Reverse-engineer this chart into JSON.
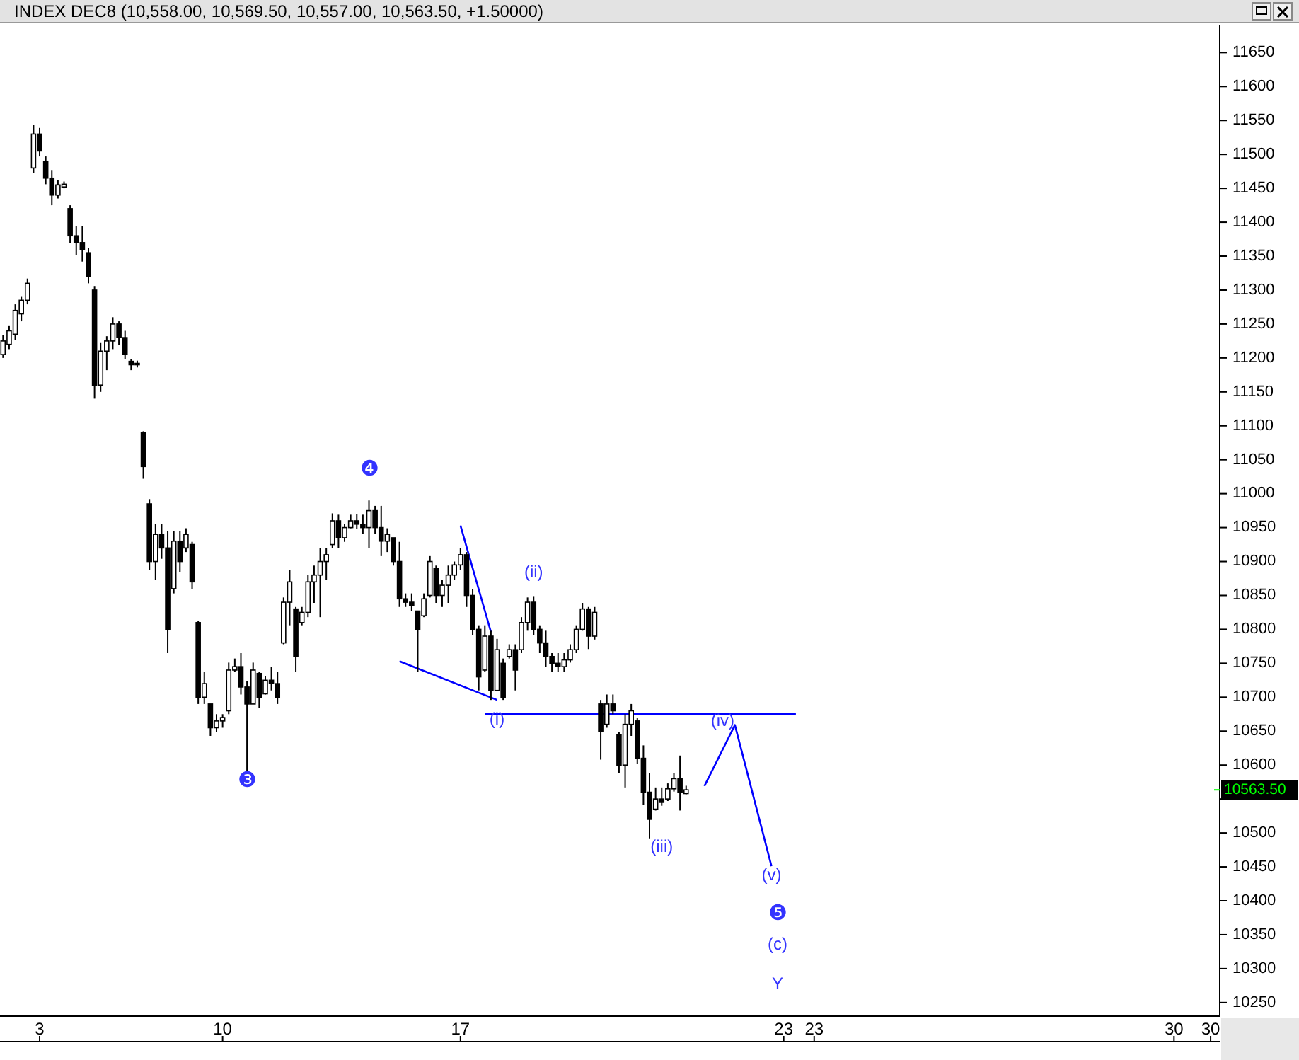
{
  "chart_data": {
    "type": "candlestick",
    "title": "INDEX DEC8 (10,558.00, 10,569.50, 10,557.00, 10,563.50, +1.50000)",
    "categories": [
      null,
      null,
      null,
      null,
      null,
      null,
      "3",
      null,
      null,
      null,
      null,
      null,
      null,
      null,
      null,
      null,
      null,
      null,
      null,
      null,
      null,
      null,
      null,
      null,
      null,
      null,
      null,
      null,
      null,
      null,
      null,
      null,
      null,
      null,
      null,
      null,
      "10",
      null,
      null,
      null,
      null,
      null,
      null,
      null,
      null,
      null,
      null,
      null,
      null,
      null,
      null,
      null,
      null,
      null,
      null,
      null,
      null,
      null,
      null,
      null,
      null,
      null,
      null,
      null,
      null,
      null,
      null,
      null,
      null,
      null,
      null,
      null,
      null,
      null,
      null,
      "17",
      null,
      null,
      null,
      null,
      null,
      null,
      null,
      null,
      null,
      null,
      null,
      null,
      null,
      null,
      null,
      null,
      null,
      null,
      null,
      null,
      null,
      null,
      null,
      null,
      null,
      null,
      null,
      null,
      null,
      null,
      null,
      null,
      null,
      null,
      null,
      null,
      null,
      null,
      null,
      null,
      null,
      null,
      null,
      null,
      null,
      null,
      null,
      null,
      null,
      null,
      null,
      null,
      "23",
      null,
      null,
      null,
      null,
      "23",
      null,
      null,
      null,
      null,
      null,
      null,
      null,
      null,
      null,
      null,
      null,
      null,
      null,
      null,
      null,
      null,
      null,
      null,
      null,
      null,
      null,
      null,
      null,
      null,
      null,
      null,
      null,
      null,
      null,
      null,
      null,
      null,
      null,
      null,
      null,
      null,
      null,
      null,
      null,
      null,
      null,
      null,
      null,
      null,
      null,
      null,
      null,
      null,
      null,
      null,
      null,
      null,
      null,
      null,
      null,
      null,
      null,
      null,
      "30",
      null,
      null,
      null,
      null,
      null,
      "30",
      null
    ],
    "ohlc": [
      [
        11205,
        11234,
        11200,
        11225
      ],
      [
        11220,
        11248,
        11213,
        11240
      ],
      [
        11235,
        11279,
        11227,
        11270
      ],
      [
        11265,
        11290,
        11254,
        11285
      ],
      [
        11285,
        11317,
        11279,
        11310
      ],
      [
        11480,
        11543,
        11473,
        11530
      ],
      [
        11530,
        11539,
        11497,
        11505
      ],
      [
        11490,
        11497,
        11456,
        11465
      ],
      [
        11465,
        11477,
        11425,
        11440
      ],
      [
        11440,
        11462,
        11435,
        11455
      ],
      [
        11452,
        11460,
        11450,
        11456
      ],
      [
        11420,
        11425,
        11369,
        11380
      ],
      [
        11380,
        11394,
        11352,
        11370
      ],
      [
        11370,
        11394,
        11342,
        11360
      ],
      [
        11355,
        11362,
        11310,
        11320
      ],
      [
        11300,
        11306,
        11140,
        11160
      ],
      [
        11160,
        11222,
        11150,
        11210
      ],
      [
        11210,
        11232,
        11182,
        11225
      ],
      [
        11225,
        11260,
        11213,
        11250
      ],
      [
        11250,
        11254,
        11219,
        11230
      ],
      [
        11230,
        11240,
        11198,
        11205
      ],
      [
        11195,
        11198,
        11182,
        11190
      ],
      [
        11190,
        11196,
        11186,
        11192
      ],
      [
        11090,
        11092,
        11022,
        11040
      ],
      [
        10985,
        10992,
        10888,
        10900
      ],
      [
        10900,
        10955,
        10873,
        10940
      ],
      [
        10940,
        10955,
        10904,
        10920
      ],
      [
        10920,
        10945,
        10765,
        10800
      ],
      [
        10860,
        10945,
        10853,
        10930
      ],
      [
        10930,
        10945,
        10884,
        10900
      ],
      [
        10920,
        10949,
        10914,
        10940
      ],
      [
        10925,
        10929,
        10859,
        10870
      ],
      [
        10810,
        10812,
        10690,
        10700
      ],
      [
        10700,
        10737,
        10690,
        10720
      ],
      [
        10690,
        10690,
        10643,
        10655
      ],
      [
        10655,
        10675,
        10649,
        10665
      ],
      [
        10665,
        10675,
        10655,
        10670
      ],
      [
        10680,
        10751,
        10675,
        10740
      ],
      [
        10740,
        10757,
        10737,
        10745
      ],
      [
        10745,
        10765,
        10704,
        10715
      ],
      [
        10715,
        10724,
        10588,
        10690
      ],
      [
        10690,
        10751,
        10690,
        10740
      ],
      [
        10735,
        10737,
        10684,
        10700
      ],
      [
        10705,
        10731,
        10704,
        10725
      ],
      [
        10725,
        10745,
        10710,
        10720
      ],
      [
        10720,
        10737,
        10690,
        10700
      ],
      [
        10780,
        10847,
        10778,
        10840
      ],
      [
        10840,
        10888,
        10806,
        10870
      ],
      [
        10830,
        10833,
        10737,
        10760
      ],
      [
        10810,
        10833,
        10806,
        10825
      ],
      [
        10825,
        10880,
        10818,
        10870
      ],
      [
        10870,
        10894,
        10839,
        10880
      ],
      [
        10880,
        10920,
        10818,
        10900
      ],
      [
        10900,
        10920,
        10873,
        10910
      ],
      [
        10925,
        10971,
        10920,
        10960
      ],
      [
        10960,
        10969,
        10920,
        10935
      ],
      [
        10935,
        10955,
        10929,
        10950
      ],
      [
        10950,
        10969,
        10949,
        10960
      ],
      [
        10960,
        10970,
        10948,
        10955
      ],
      [
        10955,
        10969,
        10941,
        10950
      ],
      [
        10950,
        10990,
        10920,
        10975
      ],
      [
        10975,
        10982,
        10941,
        10950
      ],
      [
        10950,
        10982,
        10908,
        10930
      ],
      [
        10930,
        10949,
        10914,
        10940
      ],
      [
        10935,
        10935,
        10894,
        10900
      ],
      [
        10900,
        10929,
        10833,
        10845
      ],
      [
        10845,
        10853,
        10833,
        10840
      ],
      [
        10840,
        10853,
        10827,
        10835
      ],
      [
        10827,
        10827,
        10737,
        10800
      ],
      [
        10820,
        10853,
        10818,
        10845
      ],
      [
        10850,
        10908,
        10847,
        10900
      ],
      [
        10890,
        10894,
        10839,
        10850
      ],
      [
        10850,
        10873,
        10833,
        10865
      ],
      [
        10865,
        10894,
        10839,
        10880
      ],
      [
        10880,
        10900,
        10873,
        10895
      ],
      [
        10895,
        10920,
        10888,
        10910
      ],
      [
        10910,
        10914,
        10833,
        10850
      ],
      [
        10850,
        10859,
        10792,
        10800
      ],
      [
        10800,
        10806,
        10710,
        10730
      ],
      [
        10740,
        10806,
        10737,
        10790
      ],
      [
        10790,
        10798,
        10696,
        10710
      ],
      [
        10710,
        10786,
        10710,
        10770
      ],
      [
        10750,
        10757,
        10696,
        10700
      ],
      [
        10760,
        10778,
        10757,
        10770
      ],
      [
        10770,
        10778,
        10710,
        10740
      ],
      [
        10770,
        10818,
        10765,
        10810
      ],
      [
        10810,
        10847,
        10798,
        10840
      ],
      [
        10840,
        10849,
        10792,
        10800
      ],
      [
        10800,
        10806,
        10765,
        10780
      ],
      [
        10780,
        10798,
        10745,
        10760
      ],
      [
        10760,
        10765,
        10737,
        10750
      ],
      [
        10750,
        10765,
        10737,
        10745
      ],
      [
        10745,
        10765,
        10737,
        10755
      ],
      [
        10755,
        10778,
        10751,
        10770
      ],
      [
        10770,
        10806,
        10765,
        10800
      ],
      [
        10800,
        10839,
        10798,
        10830
      ],
      [
        10830,
        10833,
        10771,
        10790
      ],
      [
        10790,
        10833,
        10785,
        10825
      ],
      [
        10690,
        10696,
        10608,
        10650
      ],
      [
        10660,
        10704,
        10655,
        10690
      ],
      [
        10690,
        10704,
        10675,
        10680
      ],
      [
        10645,
        10649,
        10588,
        10600
      ],
      [
        10600,
        10675,
        10567,
        10660
      ],
      [
        10660,
        10690,
        10643,
        10680
      ],
      [
        10665,
        10669,
        10602,
        10610
      ],
      [
        10610,
        10629,
        10541,
        10560
      ],
      [
        10560,
        10588,
        10492,
        10520
      ],
      [
        10535,
        10567,
        10533,
        10550
      ],
      [
        10550,
        10567,
        10540,
        10545
      ],
      [
        10550,
        10573,
        10547,
        10565
      ],
      [
        10565,
        10588,
        10561,
        10580
      ],
      [
        10580,
        10614,
        10533,
        10560
      ],
      [
        10558,
        10569.5,
        10557,
        10563.5
      ],
      null,
      null,
      null,
      null,
      null,
      null,
      null,
      null,
      null,
      null,
      null,
      null,
      null,
      null,
      null,
      null,
      null,
      null,
      null,
      null,
      null,
      null,
      null,
      null,
      null,
      null,
      null,
      null,
      null,
      null,
      null,
      null,
      null,
      null,
      null,
      null,
      null,
      null,
      null,
      null,
      null,
      null,
      null,
      null,
      null,
      null,
      null,
      null,
      null,
      null,
      null,
      null,
      null,
      null,
      null,
      null,
      null,
      null,
      null,
      null,
      null,
      null,
      null,
      null,
      null,
      null,
      null,
      null,
      null,
      null,
      null,
      null,
      null,
      null,
      null,
      null,
      null,
      null,
      null,
      null,
      null,
      null,
      null,
      null,
      null,
      null,
      null
    ],
    "color": "#000000",
    "series": [
      {
        "type": "line",
        "color": "#0000ff",
        "values": [
          null,
          null,
          null,
          null,
          null,
          null,
          null,
          null,
          null,
          null,
          null,
          null,
          null,
          null,
          null,
          null,
          null,
          null,
          null,
          null,
          null,
          null,
          null,
          null,
          null,
          null,
          null,
          null,
          null,
          null,
          null,
          null,
          null,
          null,
          null,
          null,
          null,
          null,
          null,
          null,
          null,
          null,
          null,
          null,
          null,
          null,
          null,
          null,
          null,
          null,
          null,
          null,
          null,
          null,
          null,
          null,
          null,
          null,
          null,
          null,
          null,
          null,
          null,
          null,
          null,
          10753,
          null,
          null,
          null,
          null,
          null,
          null,
          null,
          null,
          null,
          null,
          null,
          null,
          null,
          null,
          null,
          10696,
          null,
          null,
          null,
          null,
          null,
          null,
          null,
          null,
          null,
          null,
          null,
          null,
          null,
          null,
          null,
          null,
          null,
          null,
          null,
          null,
          null,
          null,
          null,
          null,
          null,
          null,
          null,
          null,
          null,
          null,
          null,
          null,
          null,
          null,
          null,
          null,
          null,
          null,
          null,
          null,
          null,
          null,
          null,
          null,
          null,
          null,
          null,
          null,
          null,
          null,
          null,
          null,
          null,
          null,
          null,
          null,
          null,
          null,
          null,
          null,
          null,
          null,
          null,
          null,
          null,
          null,
          null,
          null,
          null,
          null,
          null,
          null,
          null,
          null,
          null,
          null,
          null,
          null,
          null,
          null,
          null,
          null,
          null,
          null,
          null,
          null,
          null,
          null,
          null,
          null,
          null,
          null,
          null,
          null,
          null,
          null,
          null,
          null,
          null,
          null,
          null,
          null,
          null,
          null,
          null,
          null,
          null,
          null,
          null,
          null,
          null,
          null,
          null,
          null,
          null,
          null,
          null,
          null
        ]
      },
      {
        "type": "line",
        "color": "#0000ff",
        "values": [
          null,
          null,
          null,
          null,
          null,
          null,
          null,
          null,
          null,
          null,
          null,
          null,
          null,
          null,
          null,
          null,
          null,
          null,
          null,
          null,
          null,
          null,
          null,
          null,
          null,
          null,
          null,
          null,
          null,
          null,
          null,
          null,
          null,
          null,
          null,
          null,
          null,
          null,
          null,
          null,
          null,
          null,
          null,
          null,
          null,
          null,
          null,
          null,
          null,
          null,
          null,
          null,
          null,
          null,
          null,
          null,
          null,
          null,
          null,
          null,
          null,
          null,
          null,
          null,
          null,
          null,
          null,
          null,
          null,
          null,
          null,
          null,
          null,
          null,
          null,
          10953,
          null,
          null,
          null,
          null,
          10796,
          null,
          null,
          null,
          null,
          null,
          null,
          null,
          null,
          null,
          null,
          null,
          null,
          null,
          null,
          null,
          null,
          null,
          null,
          null,
          null,
          null,
          null,
          null,
          null,
          null,
          null,
          null,
          null,
          null,
          null,
          null,
          null,
          null,
          null,
          null,
          null,
          null,
          null,
          null,
          null,
          null,
          null,
          null,
          null,
          null,
          null,
          null,
          null,
          null,
          null,
          null,
          null,
          null,
          null,
          null,
          null,
          null,
          null,
          null,
          null,
          null,
          null,
          null,
          null,
          null,
          null,
          null,
          null,
          null,
          null,
          null,
          null,
          null,
          null,
          null,
          null,
          null,
          null,
          null,
          null,
          null,
          null,
          null,
          null,
          null,
          null,
          null,
          null,
          null,
          null,
          null,
          null,
          null,
          null,
          null,
          null,
          null,
          null,
          null,
          null,
          null,
          null,
          null,
          null,
          null,
          null,
          null,
          null,
          null,
          null,
          null,
          null,
          null,
          null,
          null,
          null,
          null,
          null,
          null
        ]
      },
      {
        "type": "line",
        "color": "#0000ff",
        "values": [
          null,
          null,
          null,
          null,
          null,
          null,
          null,
          null,
          null,
          null,
          null,
          null,
          null,
          null,
          null,
          null,
          null,
          null,
          null,
          null,
          null,
          null,
          null,
          null,
          null,
          null,
          null,
          null,
          null,
          null,
          null,
          null,
          null,
          null,
          null,
          null,
          null,
          null,
          null,
          null,
          null,
          null,
          null,
          null,
          null,
          null,
          null,
          null,
          null,
          null,
          null,
          null,
          null,
          null,
          null,
          null,
          null,
          null,
          null,
          null,
          null,
          null,
          null,
          null,
          null,
          null,
          null,
          null,
          null,
          null,
          null,
          null,
          null,
          null,
          null,
          null,
          null,
          null,
          null,
          10675,
          null,
          null,
          null,
          null,
          null,
          null,
          null,
          null,
          null,
          null,
          null,
          null,
          null,
          null,
          null,
          null,
          null,
          null,
          null,
          null,
          null,
          null,
          null,
          null,
          null,
          null,
          null,
          null,
          null,
          null,
          null,
          null,
          null,
          null,
          null,
          null,
          null,
          null,
          null,
          null,
          null,
          null,
          null,
          null,
          null,
          null,
          null,
          null,
          null,
          null,
          10675,
          null,
          null,
          null,
          null,
          null,
          null,
          null,
          null,
          null,
          null,
          null,
          null,
          null,
          null,
          null,
          null,
          null,
          null,
          null,
          null,
          null,
          null,
          null,
          null,
          null,
          null,
          null,
          null,
          null,
          null,
          null,
          null,
          null,
          null,
          null,
          null,
          null,
          null,
          null,
          null,
          null,
          null,
          null,
          null,
          null,
          null,
          null,
          null,
          null,
          null,
          null,
          null,
          null,
          null,
          null,
          null,
          null,
          null,
          null,
          null,
          null,
          null,
          null,
          null,
          null,
          null,
          null,
          null,
          null
        ]
      },
      {
        "type": "line",
        "color": "#0000ff",
        "values": [
          null,
          null,
          null,
          null,
          null,
          null,
          null,
          null,
          null,
          null,
          null,
          null,
          null,
          null,
          null,
          null,
          null,
          null,
          null,
          null,
          null,
          null,
          null,
          null,
          null,
          null,
          null,
          null,
          null,
          null,
          null,
          null,
          null,
          null,
          null,
          null,
          null,
          null,
          null,
          null,
          null,
          null,
          null,
          null,
          null,
          null,
          null,
          null,
          null,
          null,
          null,
          null,
          null,
          null,
          null,
          null,
          null,
          null,
          null,
          null,
          null,
          null,
          null,
          null,
          null,
          null,
          null,
          null,
          null,
          null,
          null,
          null,
          null,
          null,
          null,
          null,
          null,
          null,
          null,
          null,
          null,
          null,
          null,
          null,
          null,
          null,
          null,
          null,
          null,
          null,
          null,
          null,
          null,
          null,
          null,
          null,
          null,
          null,
          null,
          null,
          null,
          null,
          null,
          null,
          null,
          null,
          null,
          null,
          null,
          null,
          null,
          null,
          null,
          null,
          null,
          10569,
          null,
          null,
          null,
          null,
          10659,
          null,
          null,
          null,
          null,
          null,
          10451,
          null,
          null,
          null,
          null,
          null,
          null,
          null,
          null,
          null,
          null,
          null,
          null,
          null,
          null,
          null,
          null,
          null,
          null,
          null,
          null,
          null,
          null,
          null,
          null,
          null,
          null,
          null,
          null,
          null,
          null,
          null,
          null,
          null,
          null,
          null,
          null,
          null,
          null,
          null,
          null,
          null,
          null,
          null,
          null,
          null,
          null,
          null,
          null,
          null,
          null,
          null,
          null,
          null,
          null,
          null,
          null,
          null,
          null,
          null,
          null,
          null,
          null,
          null,
          null,
          null,
          null,
          null,
          null,
          null,
          null,
          null,
          null,
          null
        ]
      }
    ],
    "ylim": [
      10230,
      11690
    ],
    "yticks": [
      10250,
      10300,
      10350,
      10400,
      10450,
      10500,
      {
        "value": 10550,
        "label": null
      },
      10600,
      10650,
      10700,
      10750,
      10800,
      10850,
      10900,
      10950,
      11000,
      11050,
      11100,
      11150,
      11200,
      11250,
      11300,
      11350,
      11400,
      11450,
      11500,
      11550,
      11600,
      11650
    ],
    "ref_lines": [
      {
        "axis": "y",
        "value": 10563.5,
        "label": "10563.50",
        "color": "#00ff00"
      }
    ],
    "annotations": [
      "❸",
      "❹",
      "(i)",
      "(ii)",
      "(iii)",
      "(iv)",
      "(v)",
      "❺",
      "(c)",
      "Y"
    ]
  }
}
